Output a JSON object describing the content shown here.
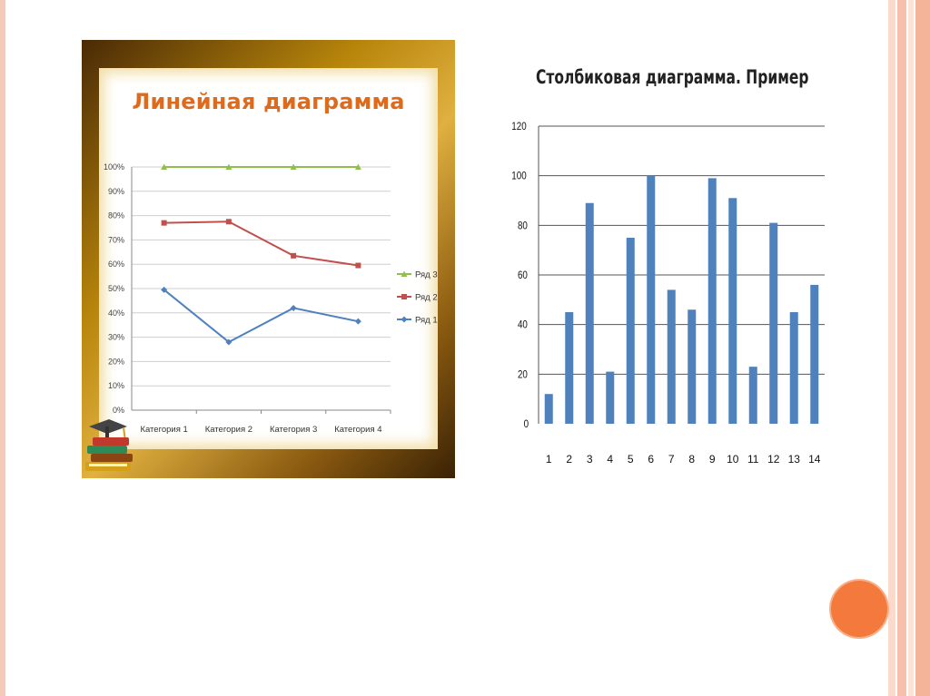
{
  "slide": {
    "colors": {
      "accent": "#f37a3c",
      "stripe": "#f6c9b8",
      "frame": "#b8860b"
    }
  },
  "chart_data": [
    {
      "type": "line",
      "title": "Линейная диаграмма",
      "categories": [
        "Категория 1",
        "Категория 2",
        "Категория 3",
        "Категория 4"
      ],
      "y_tick_labels": [
        "0%",
        "10%",
        "20%",
        "30%",
        "40%",
        "50%",
        "60%",
        "70%",
        "80%",
        "90%",
        "100%"
      ],
      "ylim": [
        0,
        100
      ],
      "grid": true,
      "legend_position": "right",
      "series": [
        {
          "name": "Ряд 3",
          "values": [
            100,
            100,
            100,
            100
          ],
          "color": "#8fc04f",
          "marker": "triangle"
        },
        {
          "name": "Ряд 2",
          "values": [
            77,
            77.5,
            63.5,
            59.5
          ],
          "color": "#c0504d",
          "marker": "square"
        },
        {
          "name": "Ряд 1",
          "values": [
            49.5,
            28,
            42,
            36.5
          ],
          "color": "#4f81bd",
          "marker": "diamond"
        }
      ]
    },
    {
      "type": "bar",
      "title": "Столбиковая диаграмма. Пример",
      "categories": [
        "1",
        "2",
        "3",
        "4",
        "5",
        "6",
        "7",
        "8",
        "9",
        "10",
        "11",
        "12",
        "13",
        "14"
      ],
      "values": [
        12,
        45,
        89,
        21,
        75,
        100,
        54,
        46,
        99,
        91,
        23,
        81,
        45,
        56
      ],
      "y_tick_labels": [
        "0",
        "20",
        "40",
        "60",
        "80",
        "100",
        "120"
      ],
      "ylim": [
        0,
        120
      ],
      "grid": true,
      "color": "#4f81bd"
    }
  ]
}
